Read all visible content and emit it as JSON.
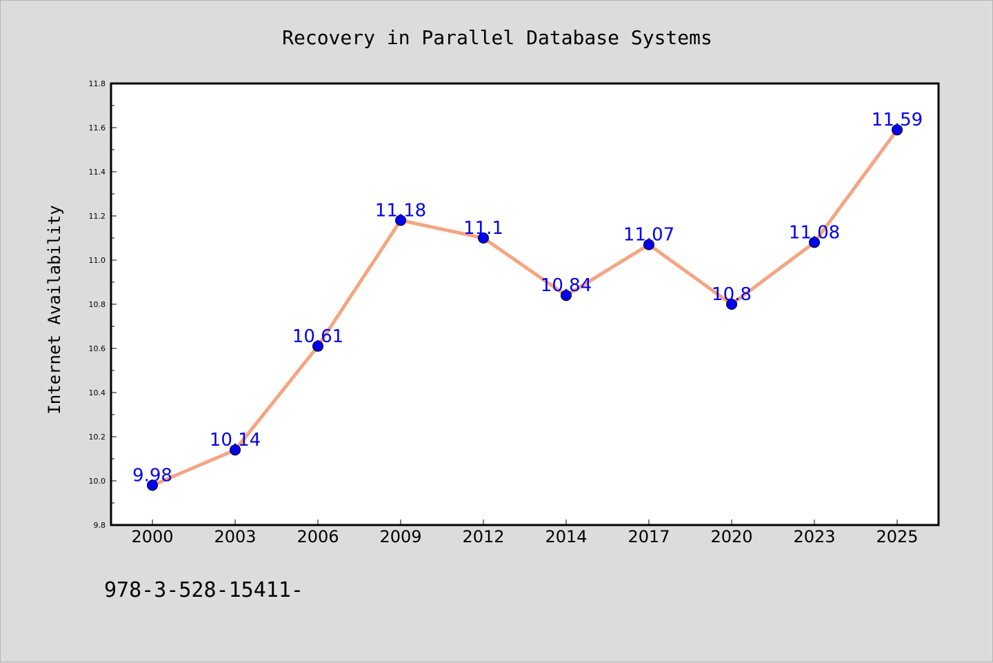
{
  "chart_data": {
    "type": "line",
    "title": "Recovery in Parallel Database Systems",
    "xlabel": "",
    "ylabel": "Internet Availability",
    "categories": [
      "2000",
      "2003",
      "2006",
      "2009",
      "2012",
      "2014",
      "2017",
      "2020",
      "2023",
      "2025"
    ],
    "values": [
      9.98,
      10.14,
      10.61,
      11.18,
      11.1,
      10.84,
      11.07,
      10.8,
      11.08,
      11.59
    ],
    "data_labels": [
      "9.98",
      "10.14",
      "10.61",
      "11.18",
      "11.1",
      "10.84",
      "11.07",
      "10.8",
      "11.08",
      "11.59"
    ],
    "ylim": [
      9.8,
      11.8
    ],
    "yticks": [
      "9.8",
      "10.0",
      "10.2",
      "10.4",
      "10.6",
      "10.8",
      "11.0",
      "11.2",
      "11.4",
      "11.6",
      "11.8"
    ],
    "grid": false,
    "line_color": "#f4a582",
    "marker_color": "#0000ee",
    "label_color": "#0000ee",
    "plot_background": "#ffffff",
    "page_background": "#dcdcdc"
  },
  "footer": {
    "text": "978-3-528-15411-"
  }
}
